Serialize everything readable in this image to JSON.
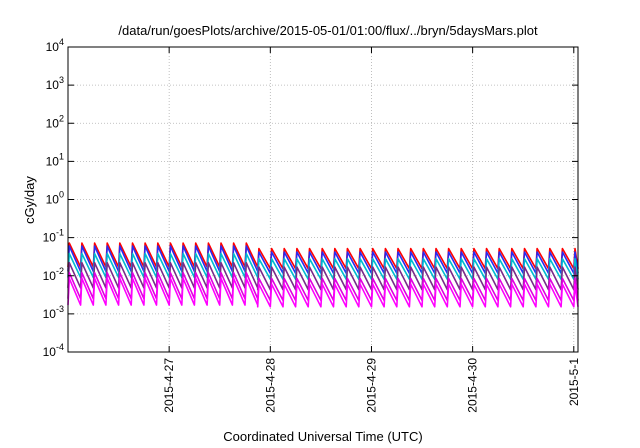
{
  "chart_data": {
    "type": "line",
    "title": "/data/run/goesPlots/archive/2015-05-01/01:00/flux/../bryn/5daysMars.plot",
    "xlabel": "Coordinated Universal Time (UTC)",
    "ylabel": "cGy/day",
    "y_scale": "log",
    "ylim": [
      0.0001,
      10000
    ],
    "xlim": [
      "2015-04-26 00:00",
      "2015-05-01 01:00"
    ],
    "grid": true,
    "legend": "none",
    "y_ticks": [
      {
        "base": "10",
        "exp": "-4"
      },
      {
        "base": "10",
        "exp": "-3"
      },
      {
        "base": "10",
        "exp": "-2"
      },
      {
        "base": "10",
        "exp": "-1"
      },
      {
        "base": "10",
        "exp": "0"
      },
      {
        "base": "10",
        "exp": "1"
      },
      {
        "base": "10",
        "exp": "2"
      },
      {
        "base": "10",
        "exp": "3"
      },
      {
        "base": "10",
        "exp": "4"
      }
    ],
    "x_ticks": [
      {
        "label": "2015-4-27",
        "x": "2015-04-27 00:00"
      },
      {
        "label": "2015-4-28",
        "x": "2015-04-28 00:00"
      },
      {
        "label": "2015-4-29",
        "x": "2015-04-29 00:00"
      },
      {
        "label": "2015-4-30",
        "x": "2015-04-30 00:00"
      },
      {
        "label": "2015-5-1",
        "x": "2015-05-01 00:00"
      }
    ],
    "pulse_period_hours": 3,
    "series": [
      {
        "color": "#ff0000",
        "peak": 0.072,
        "trough": 0.017,
        "days_1_2_peak": 0.072,
        "days_3_5_peak": 0.052
      },
      {
        "color": "#2a2af0",
        "peak": 0.06,
        "trough": 0.013,
        "days_1_2_peak": 0.06,
        "days_3_5_peak": 0.042
      },
      {
        "color": "#00bcd0",
        "peak": 0.038,
        "trough": 0.009,
        "days_1_2_peak": 0.038,
        "days_3_5_peak": 0.028
      },
      {
        "color": "#7a2a8a",
        "peak": 0.022,
        "trough": 0.0048,
        "days_1_2_peak": 0.022,
        "days_3_5_peak": 0.017
      },
      {
        "color": "#e000e0",
        "peak": 0.012,
        "trough": 0.0025,
        "days_1_2_peak": 0.012,
        "days_3_5_peak": 0.0085
      },
      {
        "color": "#ff00ff",
        "peak": 0.0085,
        "trough": 0.0017,
        "days_1_2_peak": 0.0085,
        "days_3_5_peak": 0.006
      }
    ]
  }
}
